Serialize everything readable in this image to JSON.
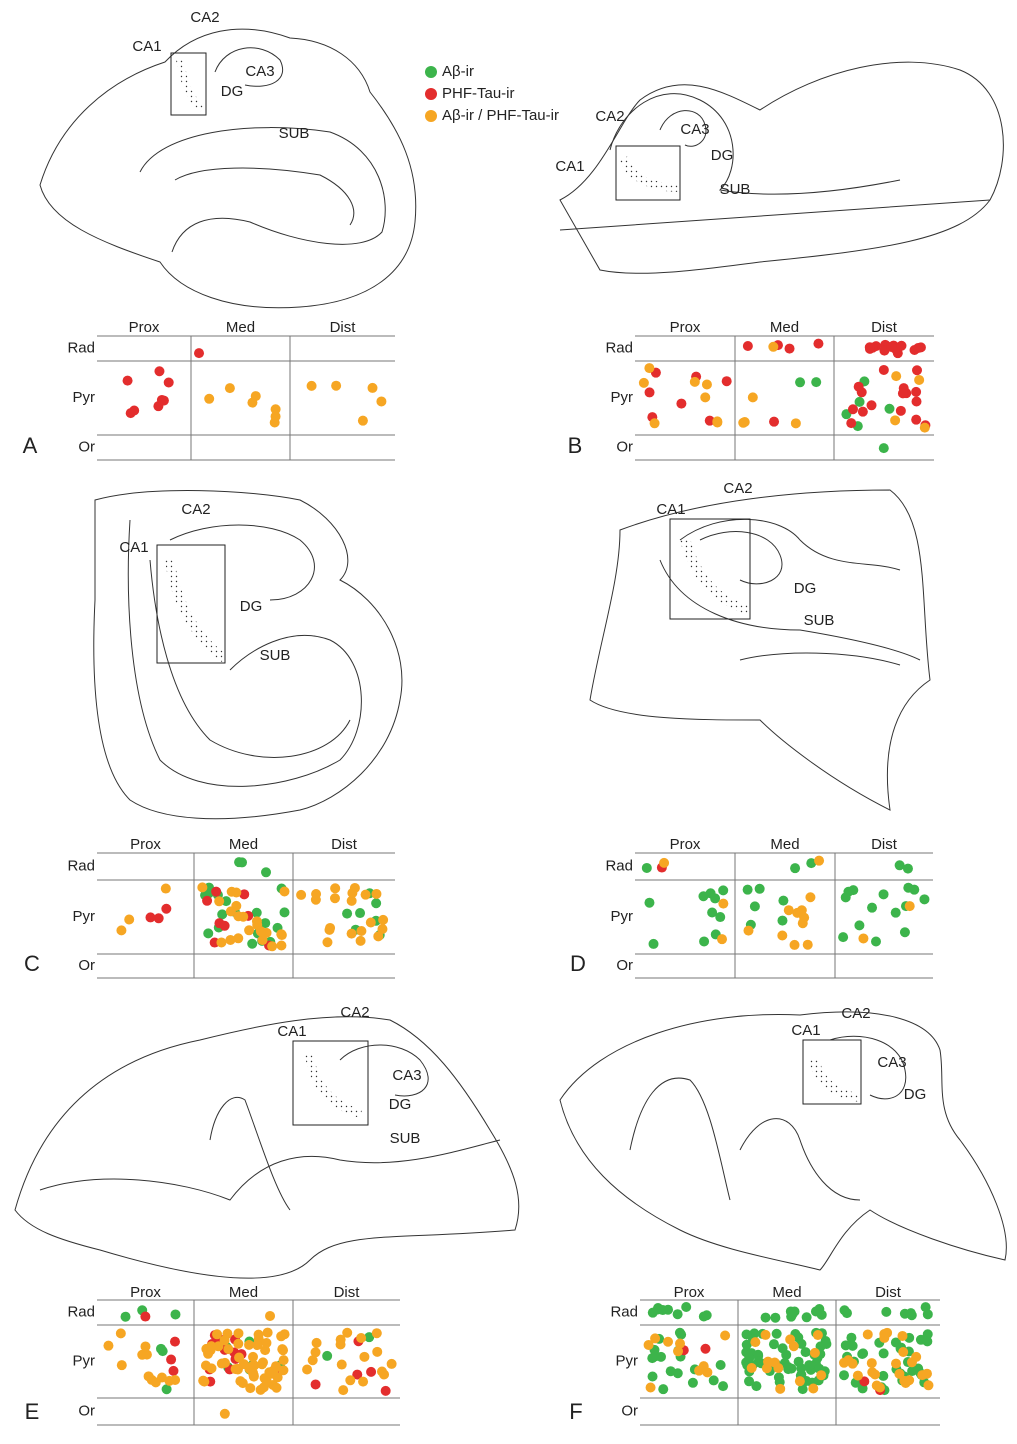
{
  "legend": [
    {
      "label": "Aβ-ir",
      "color": "#3cb44b"
    },
    {
      "label": "PHF-Tau-ir",
      "color": "#e32d2d"
    },
    {
      "label": "Aβ-ir / PHF-Tau-ir",
      "color": "#f6a623"
    }
  ],
  "panels": [
    {
      "letter": "A",
      "regions": [
        "CA1",
        "CA2",
        "CA3",
        "DG",
        "SUB"
      ],
      "columns": [
        "Prox",
        "Med",
        "Dist"
      ],
      "rows": [
        "Rad",
        "Pyr",
        "Or"
      ]
    },
    {
      "letter": "B",
      "regions": [
        "CA2",
        "CA3",
        "CA1",
        "DG",
        "SUB"
      ],
      "columns": [
        "Prox",
        "Med",
        "Dist"
      ],
      "rows": [
        "Rad",
        "Pyr",
        "Or"
      ]
    },
    {
      "letter": "C",
      "regions": [
        "CA2",
        "CA1",
        "DG",
        "SUB"
      ],
      "columns": [
        "Prox",
        "Med",
        "Dist"
      ],
      "rows": [
        "Rad",
        "Pyr",
        "Or"
      ]
    },
    {
      "letter": "D",
      "regions": [
        "CA2",
        "CA1",
        "DG",
        "SUB"
      ],
      "columns": [
        "Prox",
        "Med",
        "Dist"
      ],
      "rows": [
        "Rad",
        "Pyr",
        "Or"
      ]
    },
    {
      "letter": "E",
      "regions": [
        "CA1",
        "CA2",
        "CA3",
        "DG",
        "SUB"
      ],
      "columns": [
        "Prox",
        "Med",
        "Dist"
      ],
      "rows": [
        "Rad",
        "Pyr",
        "Or"
      ]
    },
    {
      "letter": "F",
      "regions": [
        "CA2",
        "CA1",
        "CA3",
        "DG"
      ],
      "columns": [
        "Prox",
        "Med",
        "Dist"
      ],
      "rows": [
        "Rad",
        "Pyr",
        "Or"
      ]
    }
  ]
}
